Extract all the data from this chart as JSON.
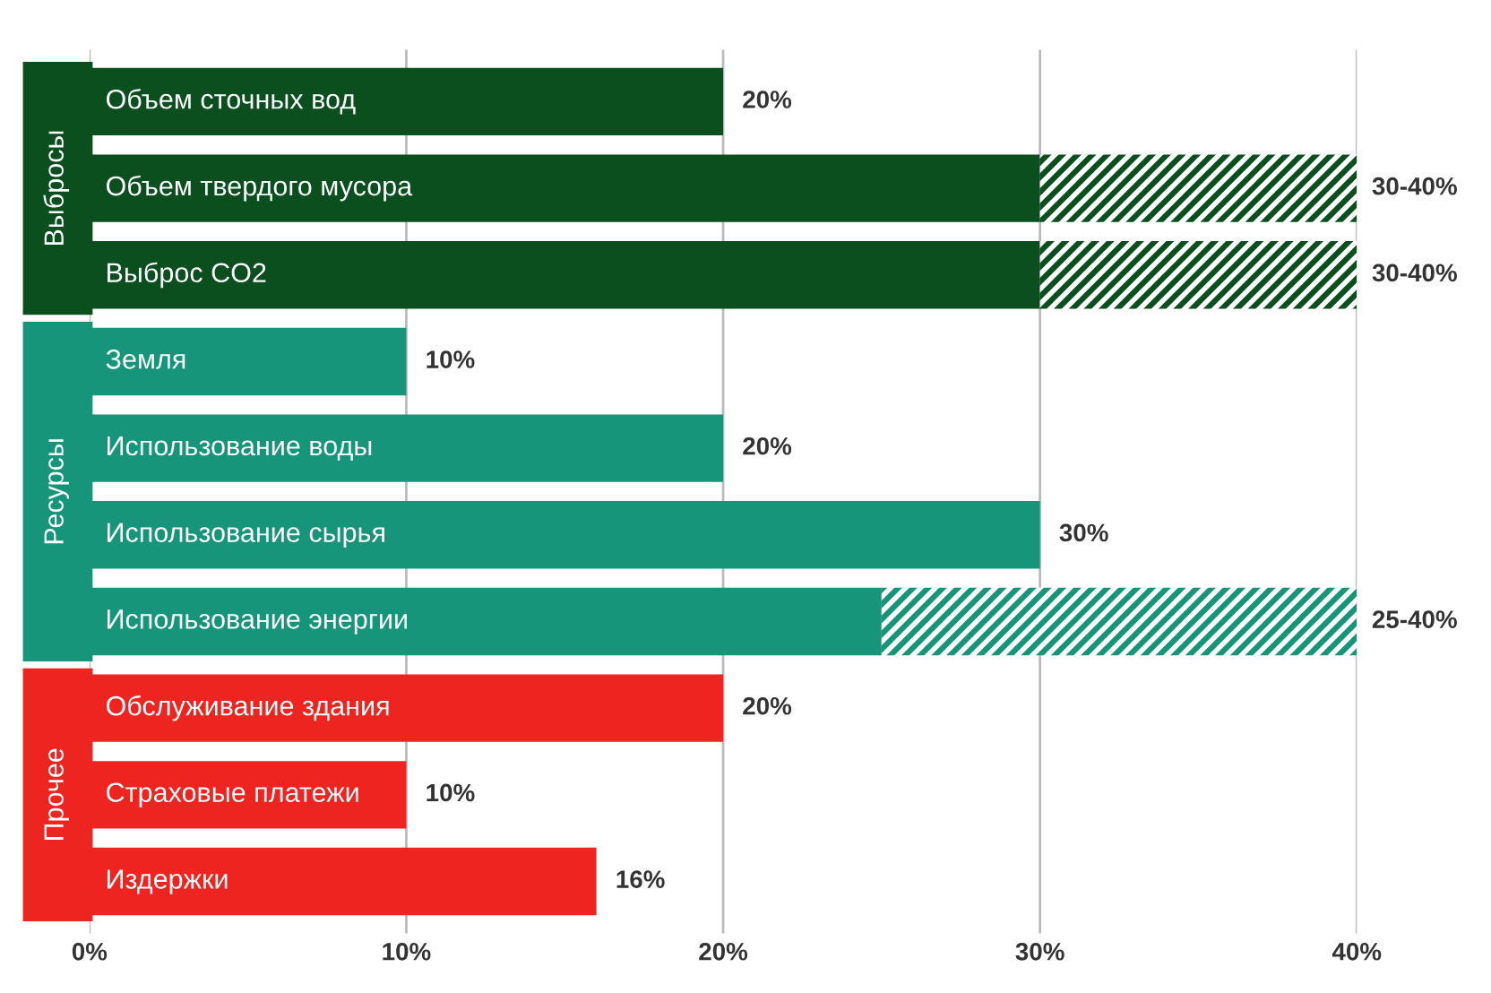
{
  "chart_data": {
    "type": "bar",
    "orientation": "horizontal",
    "stacked": true,
    "categories": [
      "Объем сточных вод",
      "Объем твердого мусора",
      "Выброс CO2",
      "Земля",
      "Использование воды",
      "Использование сырья",
      "Использование энергии",
      "Обслуживание здания",
      "Страховые платежи",
      "Издержки"
    ],
    "series": [
      {
        "colors": [
          "#0b4f1f",
          "#0b4f1f",
          "#0b4f1f",
          "#17957b",
          "#17957b",
          "#17957b",
          "#17957b",
          "#ee2420",
          "#ee2420",
          "#ee2420"
        ],
        "values": [
          20,
          30,
          30,
          10,
          20,
          30,
          25,
          20,
          10,
          16
        ],
        "value_labels": [
          "20%",
          null,
          null,
          "10%",
          "20%",
          "30%",
          null,
          "20%",
          "10%",
          "16%"
        ]
      },
      {
        "colors": [
          "#0b4f1f",
          "#0b4f1f",
          "#0b4f1f",
          "#17957b",
          "#17957b",
          "#17957b",
          "#17957b",
          "#ee2420",
          "#ee2420",
          "#ee2420"
        ],
        "values": [
          0,
          10,
          10,
          0,
          0,
          0,
          15,
          0,
          0,
          0
        ],
        "value_labels": [
          null,
          null,
          null,
          null,
          null,
          null,
          null,
          null,
          null,
          null
        ]
      }
    ],
    "annotations": [
      "Выбросы",
      "Ресурсы",
      "Прочее",
      "30-40%",
      "30-40%",
      "25-40%"
    ],
    "xlim": [
      0,
      40
    ],
    "xticks": [
      {
        "value": 0,
        "label": "0%"
      },
      {
        "value": 10,
        "label": "10%"
      },
      {
        "value": 20,
        "label": "20%"
      },
      {
        "value": 30,
        "label": "30%"
      },
      {
        "value": 40,
        "label": "40%"
      }
    ],
    "grid": "x",
    "legend": false
  }
}
